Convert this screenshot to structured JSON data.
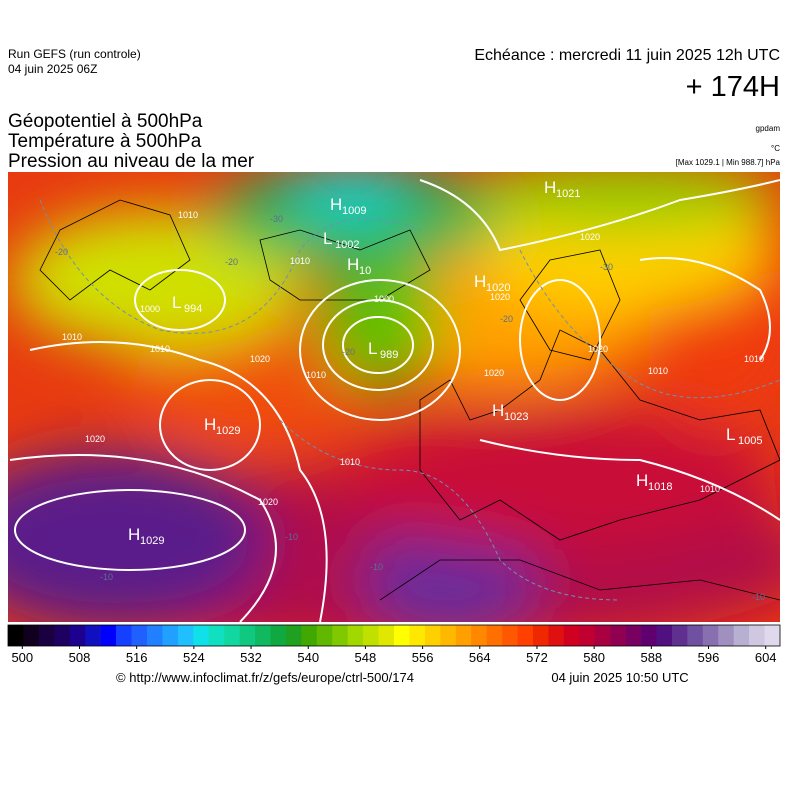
{
  "header": {
    "run": "Run GEFS (run controle)",
    "run_date": "04 juin 2025 06Z",
    "valid": "Echéance : mercredi 11 juin 2025 12h UTC",
    "lead": "+ 174H",
    "title_lines": [
      "Géopotentiel à 500hPa",
      "Température à 500hPa",
      "Pression au niveau de la mer"
    ],
    "unit_geopotential": "gpdam",
    "unit_temperature": "°C",
    "pressure_extremes": "[Max 1029.1 | Min 988.7] hPa"
  },
  "pressure_centers": [
    {
      "type": "H",
      "value": 1009
    },
    {
      "type": "L",
      "value": 1002
    },
    {
      "type": "H",
      "value": 10
    },
    {
      "type": "L",
      "value": 994
    },
    {
      "type": "H",
      "value": 1020
    },
    {
      "type": "L",
      "value": 989
    },
    {
      "type": "H",
      "value": 1021
    },
    {
      "type": "H",
      "value": 1029
    },
    {
      "type": "H",
      "value": 1023
    },
    {
      "type": "L",
      "value": 1005
    },
    {
      "type": "H",
      "value": 1018
    },
    {
      "type": "H",
      "value": 1029
    }
  ],
  "isobar_labels": [
    1010,
    1000,
    1010,
    1010,
    1020,
    1020,
    1010,
    1020,
    1020,
    1010,
    1010,
    1020,
    1000,
    1010,
    1020,
    1010,
    1020,
    1010
  ],
  "isotherm_labels": [
    -20,
    -30,
    -20,
    -30,
    -20,
    -10,
    -10,
    -10,
    -20,
    -10
  ],
  "colorbar": {
    "range": [
      498,
      606
    ],
    "ticks": [
      500,
      508,
      516,
      524,
      532,
      540,
      548,
      556,
      564,
      572,
      580,
      588,
      596,
      604
    ],
    "colors": [
      "#000000",
      "#10001e",
      "#1a0040",
      "#1e0060",
      "#1e0090",
      "#1010c0",
      "#0000ff",
      "#1540ff",
      "#2060ff",
      "#2080ff",
      "#20a0ff",
      "#20c0ff",
      "#10e0e8",
      "#10e0c0",
      "#10d8a0",
      "#10c880",
      "#10b860",
      "#10a840",
      "#20a020",
      "#40a800",
      "#60b800",
      "#80c800",
      "#a0d800",
      "#c0e000",
      "#e0e800",
      "#ffff00",
      "#ffe800",
      "#ffd000",
      "#ffb800",
      "#ffa000",
      "#ff8800",
      "#ff7000",
      "#ff5800",
      "#ff4000",
      "#f02800",
      "#e01010",
      "#d00020",
      "#c00030",
      "#a80040",
      "#900050",
      "#780060",
      "#600070",
      "#501080",
      "#603090",
      "#7050a0",
      "#8870b0",
      "#a090c0",
      "#b8b0d0",
      "#d0c8e0",
      "#e0d8ec"
    ]
  },
  "footer": {
    "source": "© http://www.infoclimat.fr/z/gefs/europe/ctrl-500/174",
    "generated": "04 juin 2025 10:50 UTC"
  }
}
